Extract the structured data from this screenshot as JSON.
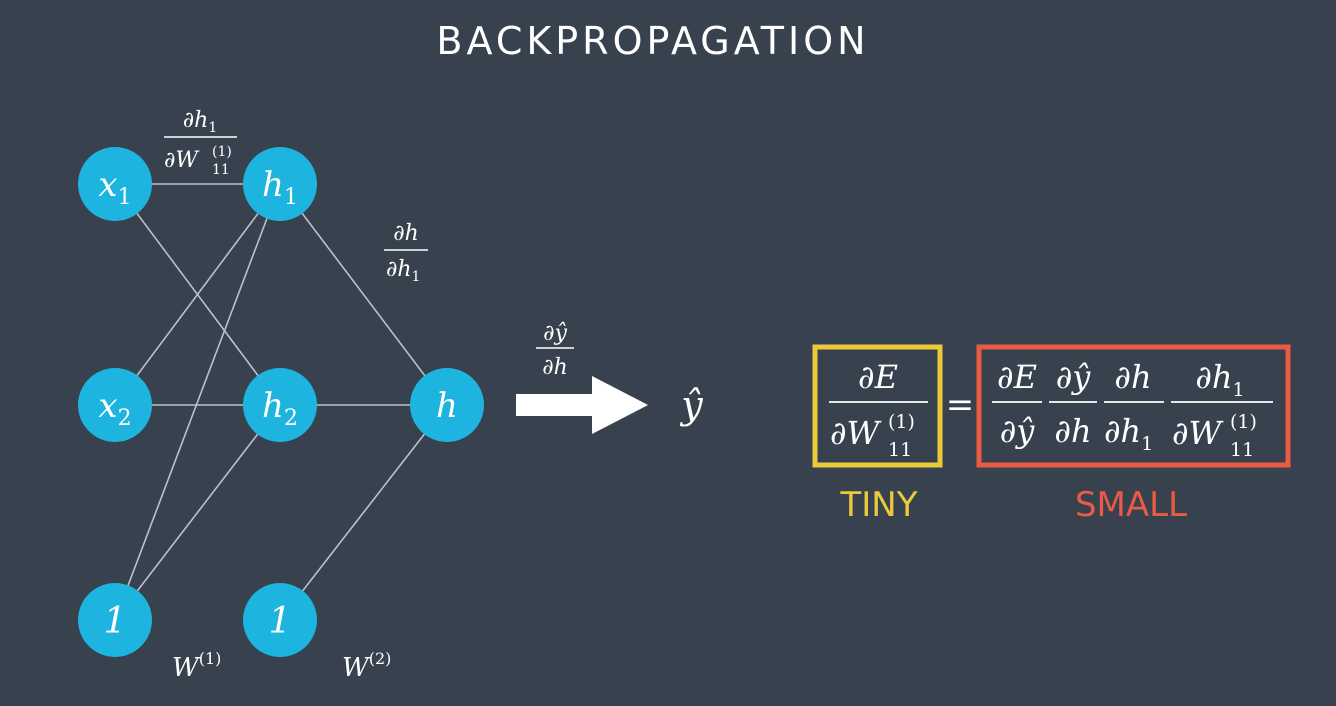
{
  "title": "BACKPROPAGATION",
  "colors": {
    "background": "#37424e",
    "node": "#1eb4e0",
    "edge": "#b9c2cc",
    "tiny_box": "#ebc93a",
    "small_box": "#ea5b45"
  },
  "nodes": {
    "x1": {
      "base": "x",
      "sub": "1"
    },
    "x2": {
      "base": "x",
      "sub": "2"
    },
    "bias1": {
      "base": "1"
    },
    "h1": {
      "base": "h",
      "sub": "1"
    },
    "h2": {
      "base": "h",
      "sub": "2"
    },
    "bias2": {
      "base": "1"
    },
    "h": {
      "base": "h"
    }
  },
  "output": {
    "symbol": "ŷ"
  },
  "weights": {
    "w1": {
      "base": "W",
      "sup": "(1)"
    },
    "w2": {
      "base": "W",
      "sup": "(2)"
    }
  },
  "derivatives": {
    "dh1_dw11": {
      "num": "∂h",
      "num_sub": "1",
      "den": "∂W",
      "den_sub": "11",
      "den_sup": "(1)"
    },
    "dh_dh1": {
      "num": "∂h",
      "den": "∂h",
      "den_sub": "1"
    },
    "dyhat_dh": {
      "num": "∂ŷ",
      "den": "∂h"
    }
  },
  "equation": {
    "lhs": {
      "num": "∂E",
      "den": "∂W",
      "den_sub": "11",
      "den_sup": "(1)"
    },
    "equals": "=",
    "rhs": [
      {
        "num": "∂E",
        "den": "∂ŷ"
      },
      {
        "num": "∂ŷ",
        "den": "∂h"
      },
      {
        "num": "∂h",
        "den": "∂h",
        "den_sub": "1"
      },
      {
        "num": "∂h",
        "num_sub": "1",
        "den": "∂W",
        "den_sub": "11",
        "den_sup": "(1)"
      }
    ]
  },
  "labels": {
    "tiny": "TINY",
    "small": "SMALL"
  }
}
